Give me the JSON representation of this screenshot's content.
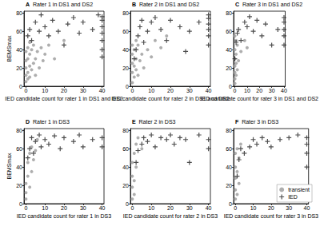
{
  "chart_data": [
    {
      "type": "scatter",
      "panel": "A",
      "title": "Rater 1 in DS1 and DS2",
      "xlabel": "IED candidate count for rater 1 in DS1 and DS2",
      "ylabel": "BEMSmax",
      "xlim": [
        -1,
        41
      ],
      "xticks": [
        0,
        10,
        20,
        30,
        40
      ],
      "ylim": [
        0,
        82
      ],
      "yticks": [
        0,
        20,
        40,
        60,
        80
      ],
      "grid": false,
      "series": [
        {
          "name": "transient",
          "color": "#9a9a9a",
          "marker": "circle",
          "values": [
            [
              0,
              5
            ],
            [
              0,
              12
            ],
            [
              0,
              20
            ],
            [
              0,
              28
            ],
            [
              1,
              8
            ],
            [
              1,
              15
            ],
            [
              1,
              30
            ],
            [
              1,
              42
            ],
            [
              2,
              10
            ],
            [
              2,
              22
            ],
            [
              2,
              35
            ],
            [
              3,
              18
            ],
            [
              3,
              40
            ],
            [
              4,
              25
            ],
            [
              4,
              45
            ],
            [
              5,
              30
            ],
            [
              5,
              12
            ],
            [
              6,
              38
            ],
            [
              7,
              20
            ],
            [
              8,
              42
            ],
            [
              9,
              28
            ],
            [
              10,
              35
            ],
            [
              12,
              45
            ],
            [
              15,
              30
            ],
            [
              20,
              50
            ],
            [
              0,
              38
            ],
            [
              2,
              48
            ]
          ]
        },
        {
          "name": "IED",
          "color": "#222222",
          "marker": "cross",
          "values": [
            [
              1,
              55
            ],
            [
              2,
              62
            ],
            [
              3,
              50
            ],
            [
              5,
              70
            ],
            [
              7,
              60
            ],
            [
              8,
              78
            ],
            [
              10,
              65
            ],
            [
              12,
              55
            ],
            [
              14,
              72
            ],
            [
              17,
              60
            ],
            [
              20,
              45
            ],
            [
              22,
              68
            ],
            [
              25,
              75
            ],
            [
              28,
              58
            ],
            [
              30,
              70
            ],
            [
              35,
              62
            ],
            [
              38,
              78
            ],
            [
              40,
              40
            ],
            [
              40,
              50
            ],
            [
              40,
              58
            ],
            [
              40,
              65
            ],
            [
              40,
              72
            ],
            [
              40,
              76
            ],
            [
              40,
              32
            ]
          ]
        }
      ]
    },
    {
      "type": "scatter",
      "panel": "B",
      "title": "Rater 2 in DS1 and DS2",
      "xlabel": "IED candidate count for rater 2 in DS1 and DS2",
      "xlim": [
        -1,
        41
      ],
      "xticks": [
        0,
        10,
        20,
        30,
        40
      ],
      "ylim": [
        0,
        82
      ],
      "yticks": [
        0,
        20,
        40,
        60,
        80
      ],
      "grid": false,
      "series": [
        {
          "name": "transient",
          "color": "#9a9a9a",
          "marker": "circle",
          "values": [
            [
              0,
              4
            ],
            [
              0,
              15
            ],
            [
              0,
              25
            ],
            [
              0,
              35
            ],
            [
              1,
              10
            ],
            [
              1,
              22
            ],
            [
              1,
              40
            ],
            [
              2,
              18
            ],
            [
              2,
              30
            ],
            [
              3,
              12
            ],
            [
              3,
              45
            ],
            [
              4,
              28
            ],
            [
              5,
              35
            ],
            [
              6,
              20
            ],
            [
              8,
              40
            ],
            [
              10,
              32
            ],
            [
              12,
              50
            ],
            [
              15,
              42
            ],
            [
              18,
              55
            ],
            [
              0,
              45
            ],
            [
              2,
              50
            ]
          ]
        },
        {
          "name": "IED",
          "color": "#222222",
          "marker": "cross",
          "values": [
            [
              1,
              30
            ],
            [
              2,
              40
            ],
            [
              3,
              55
            ],
            [
              4,
              65
            ],
            [
              5,
              72
            ],
            [
              6,
              48
            ],
            [
              8,
              60
            ],
            [
              10,
              70
            ],
            [
              12,
              75
            ],
            [
              15,
              62
            ],
            [
              18,
              50
            ],
            [
              20,
              72
            ],
            [
              25,
              65
            ],
            [
              28,
              38
            ],
            [
              30,
              60
            ],
            [
              35,
              70
            ],
            [
              40,
              45
            ],
            [
              40,
              55
            ],
            [
              40,
              62
            ],
            [
              40,
              68
            ],
            [
              40,
              74
            ],
            [
              40,
              78
            ]
          ]
        }
      ]
    },
    {
      "type": "scatter",
      "panel": "C",
      "title": "Rater 3 in DS1 and DS2",
      "xlabel": "IED candidate count for rater 3 in DS1 and DS2",
      "xlim": [
        -1,
        41
      ],
      "xticks": [
        0,
        10,
        20,
        30,
        40
      ],
      "ylim": [
        0,
        82
      ],
      "yticks": [
        0,
        20,
        40,
        60,
        80
      ],
      "grid": false,
      "series": [
        {
          "name": "transient",
          "color": "#9a9a9a",
          "marker": "circle",
          "values": [
            [
              0,
              3
            ],
            [
              0,
              8
            ],
            [
              0,
              15
            ],
            [
              0,
              22
            ],
            [
              0,
              30
            ],
            [
              0,
              40
            ],
            [
              1,
              12
            ],
            [
              1,
              25
            ],
            [
              1,
              35
            ],
            [
              1,
              50
            ],
            [
              2,
              18
            ],
            [
              2,
              45
            ],
            [
              3,
              28
            ],
            [
              5,
              38
            ],
            [
              8,
              50
            ],
            [
              10,
              42
            ],
            [
              0,
              55
            ]
          ]
        },
        {
          "name": "IED",
          "color": "#222222",
          "marker": "cross",
          "values": [
            [
              0,
              30
            ],
            [
              1,
              48
            ],
            [
              2,
              58
            ],
            [
              3,
              62
            ],
            [
              5,
              50
            ],
            [
              8,
              70
            ],
            [
              10,
              65
            ],
            [
              12,
              76
            ],
            [
              15,
              60
            ],
            [
              18,
              72
            ],
            [
              22,
              55
            ],
            [
              25,
              68
            ],
            [
              30,
              45
            ],
            [
              35,
              62
            ],
            [
              40,
              45
            ],
            [
              40,
              55
            ],
            [
              40,
              62
            ],
            [
              40,
              70
            ],
            [
              40,
              75
            ]
          ]
        }
      ]
    },
    {
      "type": "scatter",
      "panel": "D",
      "title": "Rater 1 in DS3",
      "xlabel": "IED candidate count for rater 1 in DS3",
      "ylabel": "BEMSmax",
      "xlim": [
        -1,
        41
      ],
      "xticks": [
        0,
        10,
        20,
        30,
        40
      ],
      "ylim": [
        0,
        82
      ],
      "yticks": [
        0,
        20,
        40,
        60,
        80
      ],
      "grid": false,
      "series": [
        {
          "name": "transient",
          "color": "#9a9a9a",
          "marker": "circle",
          "values": [
            [
              0,
              5
            ],
            [
              0,
              12
            ],
            [
              0,
              22
            ],
            [
              1,
              30
            ],
            [
              1,
              45
            ],
            [
              2,
              18
            ],
            [
              2,
              55
            ],
            [
              3,
              35
            ],
            [
              3,
              62
            ],
            [
              4,
              48
            ],
            [
              5,
              58
            ],
            [
              6,
              70
            ]
          ]
        },
        {
          "name": "IED",
          "color": "#222222",
          "marker": "cross",
          "values": [
            [
              1,
              50
            ],
            [
              2,
              60
            ],
            [
              3,
              72
            ],
            [
              4,
              55
            ],
            [
              5,
              68
            ],
            [
              7,
              75
            ],
            [
              8,
              62
            ],
            [
              10,
              70
            ],
            [
              12,
              65
            ],
            [
              15,
              74
            ],
            [
              18,
              60
            ],
            [
              20,
              72
            ],
            [
              25,
              68
            ],
            [
              28,
              75
            ],
            [
              30,
              62
            ],
            [
              35,
              70
            ],
            [
              40,
              62
            ],
            [
              40,
              72
            ]
          ]
        }
      ]
    },
    {
      "type": "scatter",
      "panel": "E",
      "title": "Rater 2 in DS3",
      "xlabel": "IED candidate count for rater 2 in DS3",
      "xlim": [
        -1,
        41
      ],
      "xticks": [
        0,
        10,
        20,
        30,
        40
      ],
      "ylim": [
        0,
        82
      ],
      "yticks": [
        0,
        20,
        40,
        60,
        80
      ],
      "grid": false,
      "series": [
        {
          "name": "transient",
          "color": "#9a9a9a",
          "marker": "circle",
          "values": [
            [
              0,
              5
            ],
            [
              0,
              18
            ],
            [
              0,
              30
            ],
            [
              0,
              45
            ],
            [
              1,
              10
            ],
            [
              1,
              25
            ],
            [
              1,
              55
            ],
            [
              2,
              40
            ],
            [
              2,
              65
            ],
            [
              3,
              72
            ],
            [
              5,
              60
            ]
          ]
        },
        {
          "name": "IED",
          "color": "#222222",
          "marker": "cross",
          "values": [
            [
              2,
              45
            ],
            [
              3,
              58
            ],
            [
              5,
              65
            ],
            [
              6,
              72
            ],
            [
              8,
              68
            ],
            [
              10,
              75
            ],
            [
              12,
              62
            ],
            [
              15,
              72
            ],
            [
              18,
              70
            ],
            [
              20,
              75
            ],
            [
              22,
              65
            ],
            [
              25,
              72
            ],
            [
              28,
              70
            ],
            [
              30,
              45
            ],
            [
              35,
              75
            ],
            [
              40,
              60
            ],
            [
              40,
              70
            ]
          ]
        }
      ]
    },
    {
      "type": "scatter",
      "panel": "F",
      "title": "Rater 3 in DS3",
      "xlabel": "IED candidate count for rater 3 in DS3",
      "xlim": [
        -1,
        41
      ],
      "xticks": [
        0,
        10,
        20,
        30,
        40
      ],
      "ylim": [
        0,
        82
      ],
      "yticks": [
        0,
        20,
        40,
        60,
        80
      ],
      "grid": false,
      "legend": "lower right",
      "series": [
        {
          "name": "transient",
          "color": "#9a9a9a",
          "marker": "circle",
          "values": [
            [
              0,
              5
            ],
            [
              0,
              15
            ],
            [
              0,
              28
            ],
            [
              0,
              40
            ],
            [
              0,
              55
            ],
            [
              1,
              10
            ],
            [
              1,
              35
            ],
            [
              1,
              60
            ],
            [
              2,
              22
            ],
            [
              2,
              50
            ],
            [
              3,
              65
            ]
          ]
        },
        {
          "name": "IED",
          "color": "#222222",
          "marker": "cross",
          "values": [
            [
              1,
              30
            ],
            [
              2,
              48
            ],
            [
              3,
              60
            ],
            [
              5,
              55
            ],
            [
              8,
              62
            ],
            [
              10,
              70
            ],
            [
              12,
              65
            ],
            [
              15,
              72
            ],
            [
              18,
              68
            ],
            [
              20,
              62
            ],
            [
              25,
              70
            ],
            [
              30,
              72
            ],
            [
              35,
              75
            ],
            [
              40,
              40
            ],
            [
              40,
              55
            ],
            [
              40,
              65
            ],
            [
              40,
              72
            ]
          ]
        }
      ]
    }
  ]
}
